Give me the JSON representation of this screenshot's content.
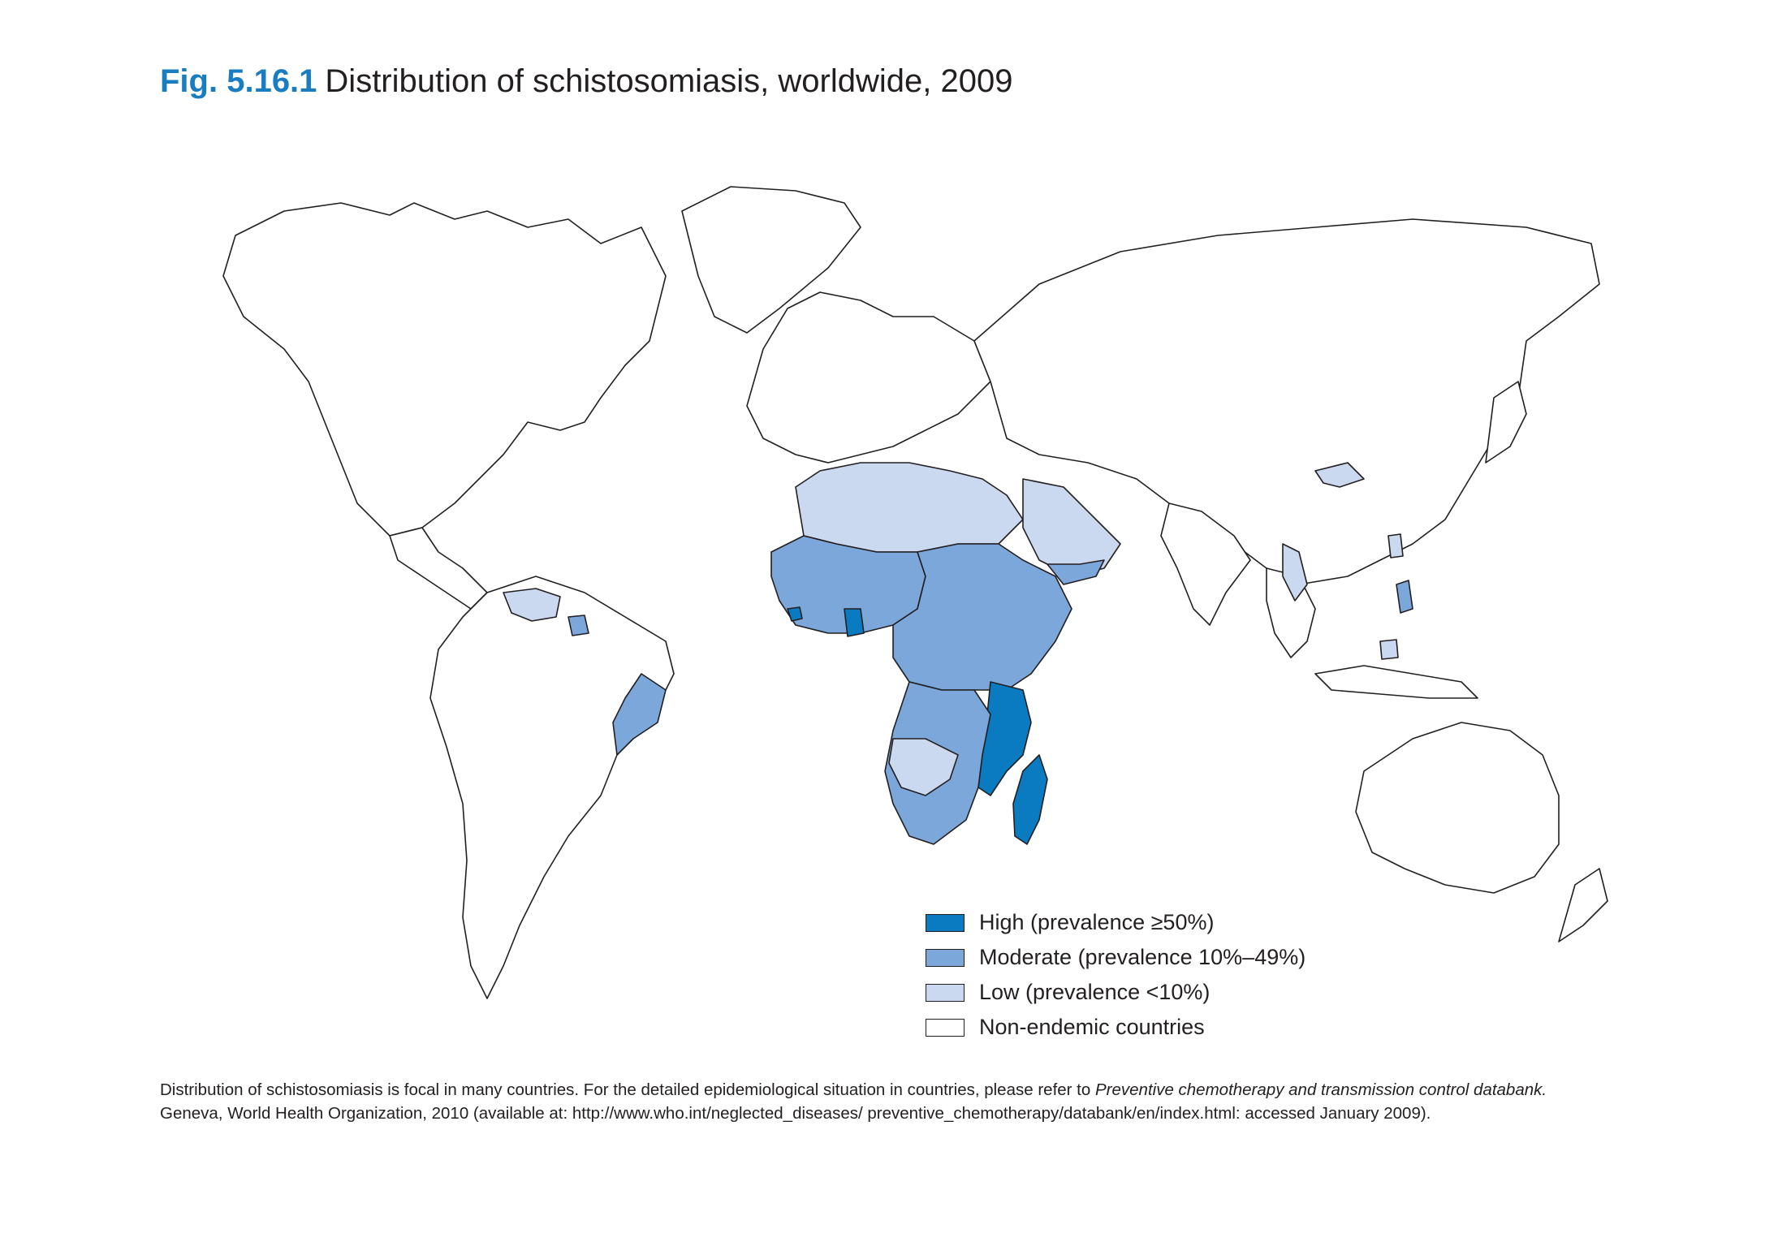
{
  "title": {
    "label": "Fig. 5.16.1",
    "text": "Distribution of schistosomiasis, worldwide, 2009"
  },
  "colors": {
    "high": "#0b7bc1",
    "moderate": "#7ba7da",
    "low": "#cbd9f0",
    "non_endemic": "#ffffff",
    "no_data": "#d9d9d9",
    "outline": "#231f20",
    "title_accent": "#1a7cc1"
  },
  "legend": {
    "items": [
      {
        "label": "High (prevalence ≥50%)",
        "color": "#0b7bc1"
      },
      {
        "label": "Moderate (prevalence 10%–49%)",
        "color": "#7ba7da"
      },
      {
        "label": "Low (prevalence <10%)",
        "color": "#cbd9f0"
      },
      {
        "label": "Non-endemic countries",
        "color": "#ffffff"
      }
    ]
  },
  "note": {
    "line1_prefix": "Distribution of schistosomiasis is focal in many countries. For the detailed epidemiological situation in countries, please refer to ",
    "line1_italic": "Preventive chemotherapy and transmission control databank.",
    "line2": "Geneva, World Health Organization, 2010 (available at: http://www.who.int/neglected_diseases/ preventive_chemotherapy/databank/en/index.html: accessed January 2009)."
  }
}
